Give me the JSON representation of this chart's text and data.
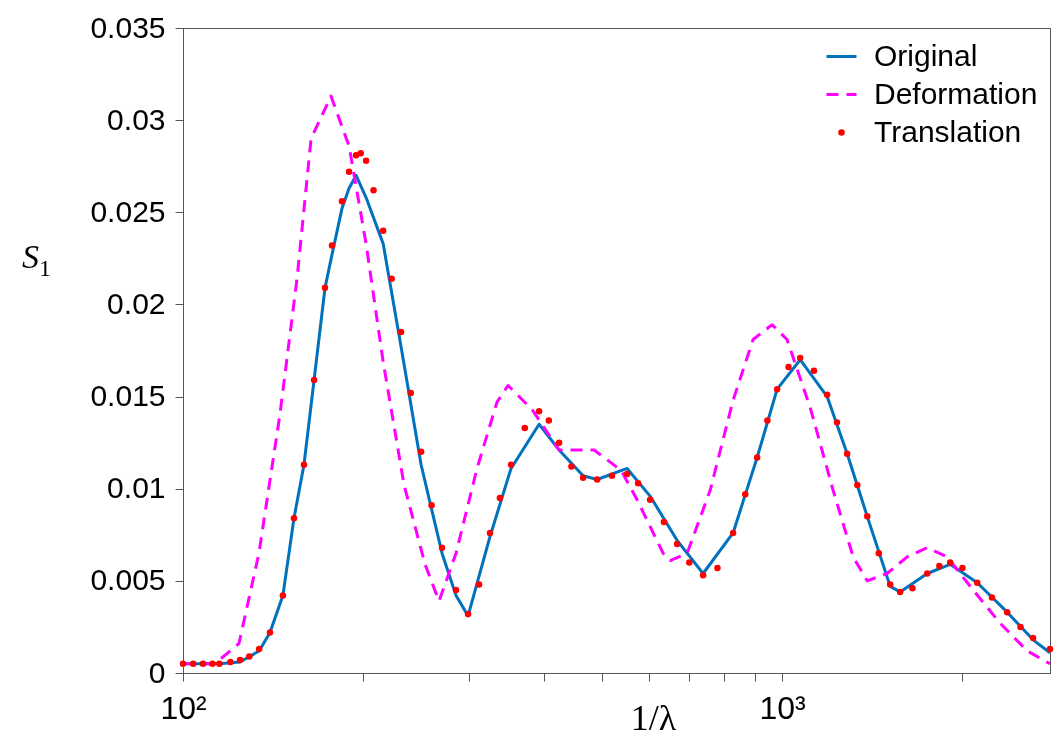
{
  "chart_data": {
    "type": "line",
    "xlabel": "1/λ",
    "ylabel": "S$_{1}$",
    "log": "x",
    "grid": false,
    "legend": "top right",
    "xlim": [
      100,
      2800
    ],
    "xticks": [
      {
        "value": 100,
        "label": "10²"
      },
      {
        "value": 200,
        "label": null
      },
      {
        "value": 300,
        "label": null
      },
      {
        "value": 400,
        "label": null
      },
      {
        "value": 500,
        "label": null
      },
      {
        "value": 600,
        "label": null
      },
      {
        "value": 700,
        "label": null
      },
      {
        "value": 800,
        "label": null
      },
      {
        "value": 900,
        "label": null
      },
      {
        "value": 1000,
        "label": "10³"
      },
      {
        "value": 2000,
        "label": null
      }
    ],
    "ylim": [
      0,
      0.035
    ],
    "yticks": [
      0,
      0.005,
      0.01,
      0.015,
      0.02,
      0.025,
      0.03,
      0.035
    ],
    "series": [
      {
        "name": "Original",
        "type": "line",
        "line_style": "solid",
        "color": "#0072bd",
        "x": [
          100,
          115,
          124.5,
          134,
          139.7,
          146.8,
          153.2,
          159.2,
          165.5,
          172.6,
          177.3,
          184.2,
          189.3,
          194.5,
          202.1,
          215.8,
          231.2,
          249.7,
          270.6,
          285.6,
          299.1,
          325.4,
          352.8,
          393,
          424.4,
          465.4,
          491.2,
          551.2,
          602.1,
          667.9,
          738.1,
          828.3,
          908.6,
          981.1,
          1072,
          1189,
          1284,
          1387,
          1515,
          1574,
          1747,
          1908,
          2117,
          2375,
          2624,
          2800
        ],
        "values": [
          0.0005,
          0.0005,
          0.0006,
          0.0012,
          0.0022,
          0.0042,
          0.0084,
          0.0113,
          0.0159,
          0.0209,
          0.0227,
          0.0252,
          0.0263,
          0.027,
          0.0258,
          0.0233,
          0.0177,
          0.0113,
          0.0065,
          0.0042,
          0.0031,
          0.0074,
          0.0111,
          0.0135,
          0.0121,
          0.0107,
          0.0105,
          0.0111,
          0.0096,
          0.0072,
          0.0054,
          0.0076,
          0.0117,
          0.0154,
          0.017,
          0.015,
          0.0119,
          0.0085,
          0.0047,
          0.0044,
          0.0054,
          0.0059,
          0.0049,
          0.0033,
          0.0018,
          0.0011
        ]
      },
      {
        "name": "Deformation",
        "type": "line",
        "line_style": "dashed",
        "color": "#ff00ff",
        "x": [
          100,
          113,
          124,
          133.9,
          145.1,
          155,
          163.6,
          176.6,
          189.3,
          202.1,
          215.8,
          233.9,
          253.5,
          267.5,
          285.6,
          309.6,
          334.3,
          348.8,
          382.5,
          424.4,
          485.5,
          538.6,
          572.8,
          632.9,
          650.2,
          694.2,
          758.2,
          828.3,
          894.6,
          962.3,
          1019,
          1114,
          1217,
          1314,
          1387,
          1497,
          1617,
          1747,
          1886,
          2084,
          2312,
          2565,
          2800
        ],
        "values": [
          0.0005,
          0.0005,
          0.0016,
          0.0065,
          0.014,
          0.0214,
          0.029,
          0.0313,
          0.0286,
          0.0233,
          0.0169,
          0.0102,
          0.0059,
          0.0039,
          0.0065,
          0.0111,
          0.0147,
          0.0156,
          0.0143,
          0.0121,
          0.0121,
          0.011,
          0.0094,
          0.0065,
          0.0061,
          0.0065,
          0.0099,
          0.0148,
          0.0181,
          0.0189,
          0.0181,
          0.0144,
          0.0099,
          0.0063,
          0.005,
          0.0054,
          0.0063,
          0.0068,
          0.0063,
          0.0045,
          0.0027,
          0.0012,
          0.0005
        ]
      },
      {
        "name": "Translation",
        "type": "scatter",
        "marker": "circle",
        "color": "#ff0000",
        "x": [
          100,
          104,
          108,
          112,
          115,
          120,
          124.5,
          129,
          134,
          139.7,
          146.8,
          153.2,
          159.2,
          165.5,
          172.6,
          177.3,
          184.2,
          189.3,
          194.5,
          198,
          202.1,
          208,
          215.8,
          223,
          231.2,
          240,
          249.7,
          260,
          270.6,
          285.6,
          299.1,
          312,
          325.4,
          338,
          352.8,
          372,
          393,
          408,
          424.4,
          445,
          465.4,
          491.2,
          520,
          551.2,
          575,
          602.1,
          635,
          667.9,
          700,
          738.1,
          780,
          828.3,
          868,
          908.6,
          945,
          981.1,
          1025,
          1072,
          1130,
          1189,
          1235,
          1284,
          1335,
          1387,
          1450,
          1515,
          1574,
          1650,
          1747,
          1830,
          1908,
          2000,
          2117,
          2240,
          2375,
          2500,
          2624,
          2800
        ],
        "values": [
          0.0005,
          0.0005,
          0.0005,
          0.0005,
          0.0005,
          0.0006,
          0.0007,
          0.0009,
          0.0013,
          0.0022,
          0.0042,
          0.0084,
          0.0113,
          0.0159,
          0.0209,
          0.0232,
          0.0256,
          0.0272,
          0.0281,
          0.0282,
          0.0278,
          0.0262,
          0.024,
          0.0214,
          0.0185,
          0.0152,
          0.012,
          0.0091,
          0.0068,
          0.0045,
          0.0032,
          0.0048,
          0.0076,
          0.0095,
          0.0113,
          0.0133,
          0.0142,
          0.0137,
          0.0125,
          0.0112,
          0.0106,
          0.0105,
          0.0107,
          0.0108,
          0.0103,
          0.0094,
          0.0082,
          0.007,
          0.006,
          0.0053,
          0.0057,
          0.0076,
          0.0097,
          0.0117,
          0.0137,
          0.0154,
          0.0166,
          0.0171,
          0.0164,
          0.0151,
          0.0136,
          0.0119,
          0.0102,
          0.0085,
          0.0065,
          0.0048,
          0.0044,
          0.0046,
          0.0054,
          0.0058,
          0.006,
          0.0057,
          0.0049,
          0.0041,
          0.0033,
          0.0025,
          0.0019,
          0.0013
        ]
      }
    ]
  }
}
